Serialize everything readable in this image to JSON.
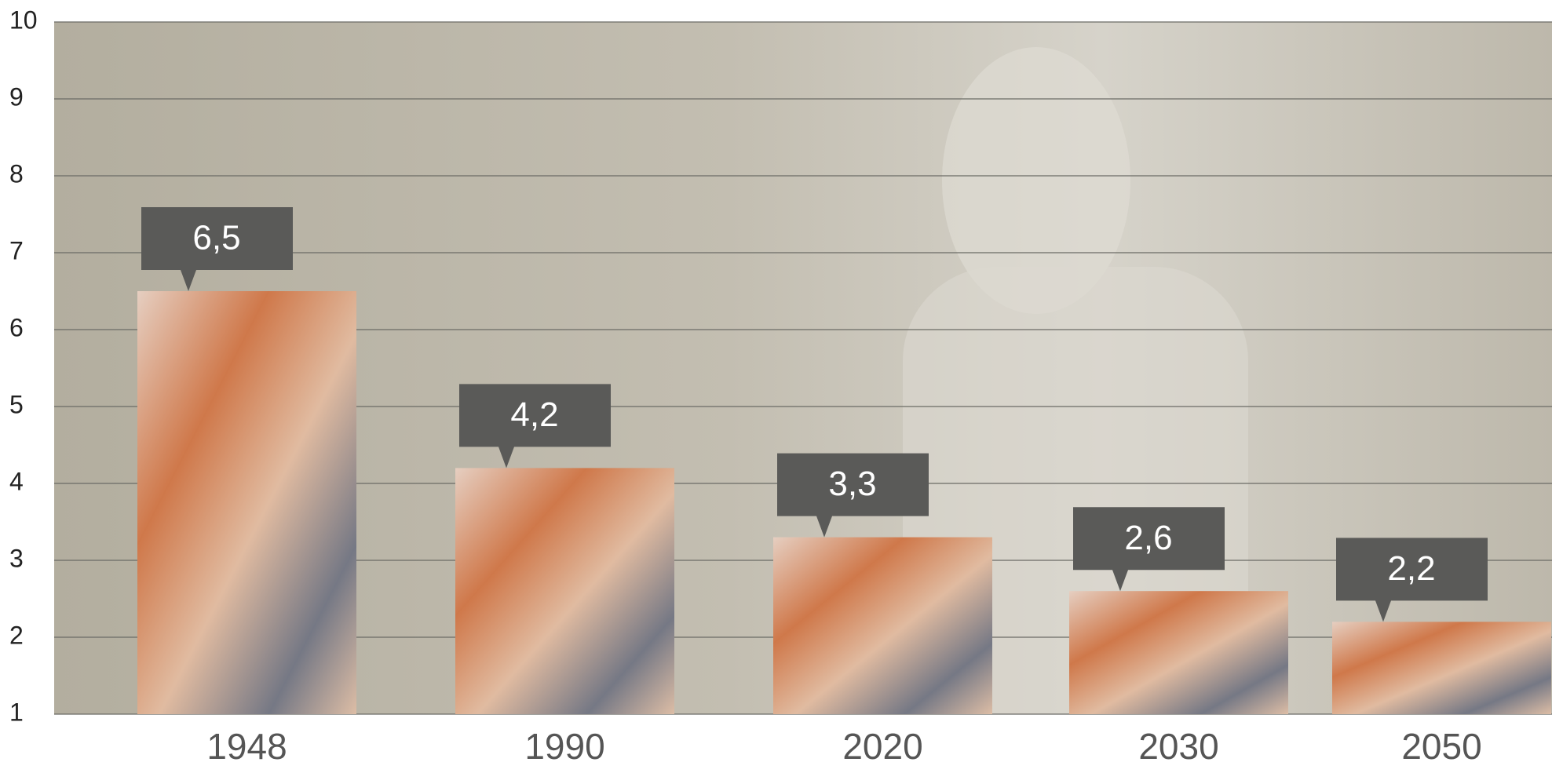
{
  "chart_data": {
    "type": "bar",
    "categories": [
      "1948",
      "1990",
      "2020",
      "2030",
      "2050"
    ],
    "values": [
      6.5,
      4.2,
      3.3,
      2.6,
      2.2
    ],
    "value_labels": [
      "6,5",
      "4,2",
      "3,3",
      "2,6",
      "2,2"
    ],
    "ylim": [
      1,
      10
    ],
    "yticks": [
      1,
      2,
      3,
      4,
      5,
      6,
      7,
      8,
      9,
      10
    ],
    "grid": true,
    "color": "#c8734a"
  }
}
